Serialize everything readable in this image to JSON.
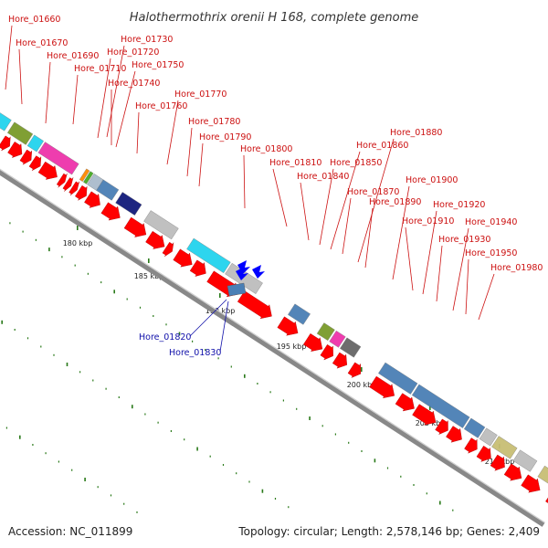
{
  "title": "Halothermothrix orenii H 168, complete genome",
  "footer": {
    "accession": "Accession: NC_011899",
    "summary": "Topology: circular; Length: 2,578,146 bp; Genes: 2,409"
  },
  "scale_labels": [
    "180 kbp",
    "185 kbp",
    "190 kbp",
    "195 kbp",
    "200 kbp",
    "205 kbp",
    "210 kbp"
  ],
  "forward_gene_labels": [
    "Hore_01660",
    "Hore_01670",
    "Hore_01690",
    "Hore_01710",
    "Hore_01720",
    "Hore_01730",
    "Hore_01740",
    "Hore_01750",
    "Hore_01760",
    "Hore_01770",
    "Hore_01780",
    "Hore_01790",
    "Hore_01800",
    "Hore_01810",
    "Hore_01840",
    "Hore_01850",
    "Hore_01860",
    "Hore_01870",
    "Hore_01880",
    "Hore_01890",
    "Hore_01900",
    "Hore_01910",
    "Hore_01920",
    "Hore_01930",
    "Hore_01940",
    "Hore_01950",
    "Hore_01980"
  ],
  "reverse_gene_labels": [
    "Hore_01820",
    "Hore_01830"
  ],
  "colors": {
    "cds_arrow": "#ff0000",
    "reverse_arrow": "#0000ff",
    "backbone": "#888888",
    "tick": "#2a7a1a",
    "label_red": "#cc1111",
    "label_blue": "#1111aa",
    "cyan": "#22d3ee",
    "olive": "#7a9a2a",
    "magenta": "#ee33aa",
    "steelblue": "#4a7fb5",
    "navy": "#111a7a",
    "silver": "#bdbdbd",
    "khaki": "#c8be74"
  }
}
